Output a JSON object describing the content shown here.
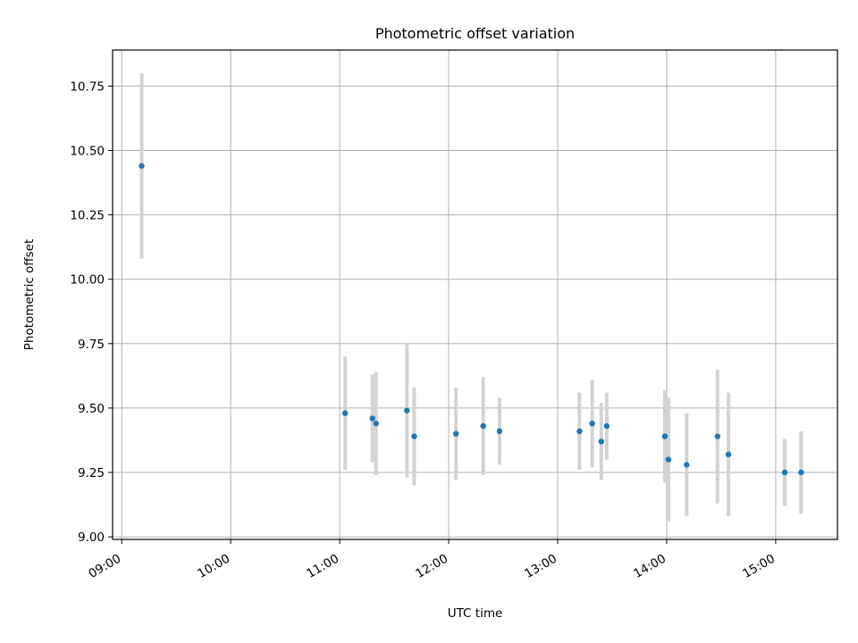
{
  "chart_data": {
    "type": "scatter",
    "title": "Photometric offset variation",
    "xlabel": "UTC time",
    "ylabel": "Photometric offset",
    "x_axis": "time",
    "xlim": [
      "08:55",
      "15:34"
    ],
    "ylim": [
      8.99,
      10.89
    ],
    "x_ticks": [
      "09:00",
      "10:00",
      "11:00",
      "12:00",
      "13:00",
      "14:00",
      "15:00"
    ],
    "y_ticks": [
      "9.00",
      "9.25",
      "9.50",
      "9.75",
      "10.00",
      "10.25",
      "10.50",
      "10.75"
    ],
    "grid": true,
    "legend": "none",
    "colors": {
      "marker": "#1f77b4",
      "errorbar": "#d3d3d3",
      "grid": "#b0b0b0"
    },
    "points": [
      {
        "x": "09:11",
        "y": 10.44,
        "yerr": 0.36
      },
      {
        "x": "11:03",
        "y": 9.48,
        "yerr": 0.22
      },
      {
        "x": "11:18",
        "y": 9.46,
        "yerr": 0.17
      },
      {
        "x": "11:20",
        "y": 9.44,
        "yerr": 0.2
      },
      {
        "x": "11:37",
        "y": 9.49,
        "yerr": 0.26
      },
      {
        "x": "11:41",
        "y": 9.39,
        "yerr": 0.19
      },
      {
        "x": "12:04",
        "y": 9.4,
        "yerr": 0.18
      },
      {
        "x": "12:19",
        "y": 9.43,
        "yerr": 0.19
      },
      {
        "x": "12:28",
        "y": 9.41,
        "yerr": 0.13
      },
      {
        "x": "13:12",
        "y": 9.41,
        "yerr": 0.15
      },
      {
        "x": "13:19",
        "y": 9.44,
        "yerr": 0.17
      },
      {
        "x": "13:24",
        "y": 9.37,
        "yerr": 0.15
      },
      {
        "x": "13:27",
        "y": 9.43,
        "yerr": 0.13
      },
      {
        "x": "13:59",
        "y": 9.39,
        "yerr": 0.18
      },
      {
        "x": "14:01",
        "y": 9.3,
        "yerr": 0.24
      },
      {
        "x": "14:11",
        "y": 9.28,
        "yerr": 0.2
      },
      {
        "x": "14:28",
        "y": 9.39,
        "yerr": 0.26
      },
      {
        "x": "14:34",
        "y": 9.32,
        "yerr": 0.24
      },
      {
        "x": "15:05",
        "y": 9.25,
        "yerr": 0.13
      },
      {
        "x": "15:14",
        "y": 9.25,
        "yerr": 0.16
      }
    ]
  }
}
